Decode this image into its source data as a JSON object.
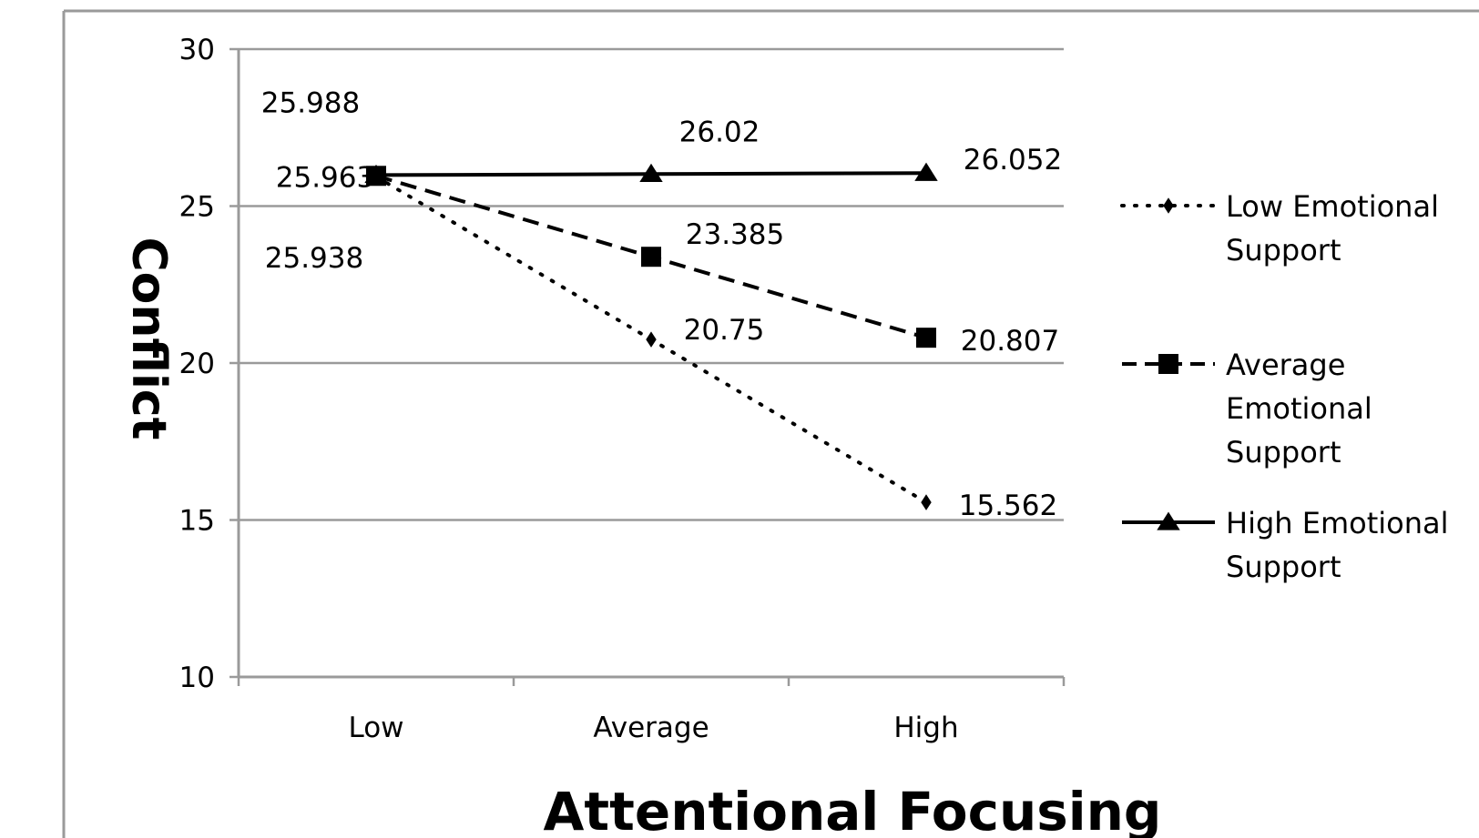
{
  "chart_data": {
    "type": "line",
    "xlabel": "Attentional Focusing",
    "ylabel": "Conflict",
    "categories": [
      "Low",
      "Average",
      "High"
    ],
    "ylim": [
      10,
      30
    ],
    "yticks": [
      10,
      15,
      20,
      25,
      30
    ],
    "grid": "horizontal",
    "legend_position": "right",
    "series": [
      {
        "name": "Low Emotional Support",
        "style": "dotted",
        "marker": "diamond",
        "color": "#000000",
        "values": [
          25.938,
          20.75,
          15.562
        ],
        "labels": [
          "25.938",
          "20.75",
          "15.562"
        ]
      },
      {
        "name": "Average Emotional Support",
        "style": "dashed",
        "marker": "square",
        "color": "#000000",
        "values": [
          25.963,
          23.385,
          20.807
        ],
        "labels": [
          "25.963",
          "23.385",
          "20.807"
        ]
      },
      {
        "name": "High Emotional Support",
        "style": "solid",
        "marker": "triangle",
        "color": "#000000",
        "values": [
          25.988,
          26.02,
          26.052
        ],
        "labels": [
          "25.988",
          "26.02",
          "26.052"
        ]
      }
    ]
  }
}
